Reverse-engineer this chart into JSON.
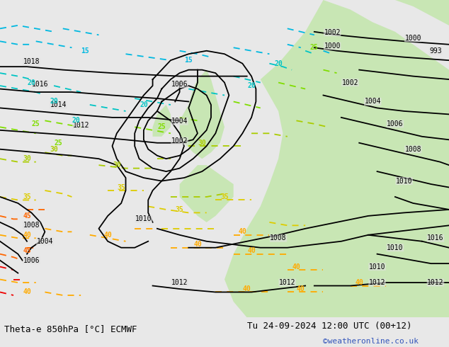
{
  "title_left": "Theta-e 850hPa [°C] ECMWF",
  "title_right": "Tu 24-09-2024 12:00 UTC (00+12)",
  "credit": "©weatheronline.co.uk",
  "bg_color": "#e8e8e8",
  "land_color": "#c8e6b4",
  "sea_color": "#e0e0e0",
  "fig_width": 6.34,
  "fig_height": 4.9,
  "dpi": 100,
  "bottom_bar_color": "#f2f2f2",
  "title_fontsize": 9,
  "credit_color": "#3355bb",
  "pressure_color": "#000000"
}
